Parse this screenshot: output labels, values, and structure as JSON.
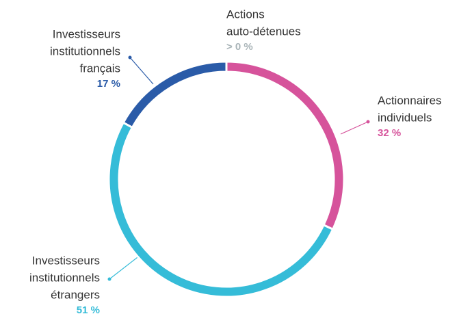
{
  "chart_data": {
    "type": "donut",
    "categories": [
      [
        "Actions",
        "auto-détenues"
      ],
      [
        "Actionnaires",
        "individuels"
      ],
      [
        "Investisseurs",
        "institutionnels",
        "étrangers"
      ],
      [
        "Investisseurs",
        "institutionnels",
        "français"
      ]
    ],
    "values": [
      0,
      32,
      51,
      17
    ],
    "value_labels": [
      "> 0 %",
      "32 %",
      "51 %",
      "17 %"
    ],
    "colors": [
      "#a9b4b8",
      "#d6539b",
      "#35bcd8",
      "#2a5ba8"
    ]
  }
}
